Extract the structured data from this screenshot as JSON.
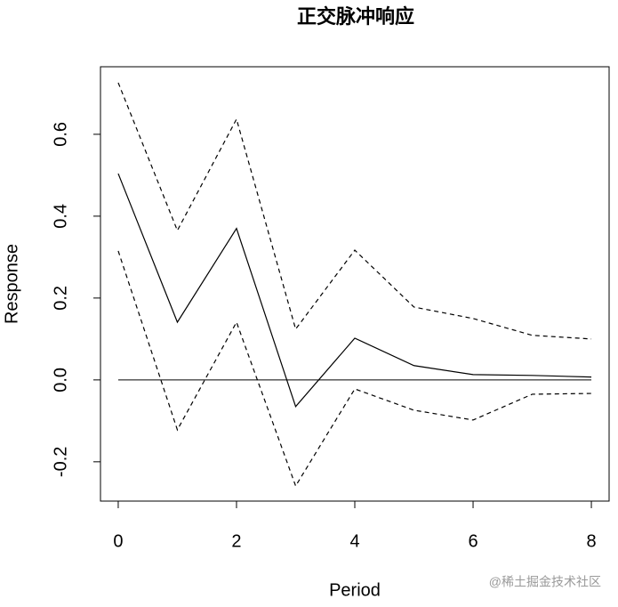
{
  "chart_data": {
    "type": "line",
    "title": "正交脉冲响应",
    "x_label": "Period",
    "y_label": "Response",
    "x": [
      0,
      1,
      2,
      3,
      4,
      5,
      6,
      7,
      8
    ],
    "series": [
      {
        "color": "#000000",
        "style": "solid",
        "values": [
          0.504,
          0.141,
          0.37,
          -0.065,
          0.102,
          0.035,
          0.013,
          0.011,
          0.007
        ]
      },
      {
        "color": "#000000",
        "style": "dashed",
        "values": [
          0.726,
          0.365,
          0.637,
          0.124,
          0.317,
          0.178,
          0.15,
          0.109,
          0.1
        ]
      },
      {
        "color": "#000000",
        "style": "dashed",
        "values": [
          0.315,
          -0.122,
          0.141,
          -0.259,
          -0.022,
          -0.074,
          -0.098,
          -0.035,
          -0.033
        ]
      }
    ],
    "reference_line": 0,
    "xlim": [
      -0.3,
      8.3
    ],
    "ylim": [
      -0.296,
      0.765
    ],
    "xticks": [
      0,
      2,
      4,
      6,
      8
    ],
    "yticks": [
      -0.2,
      {
        "value": 0,
        "label": "0.0"
      },
      0.2,
      0.4,
      0.6
    ],
    "watermark": "@稀土掘金技术社区"
  }
}
